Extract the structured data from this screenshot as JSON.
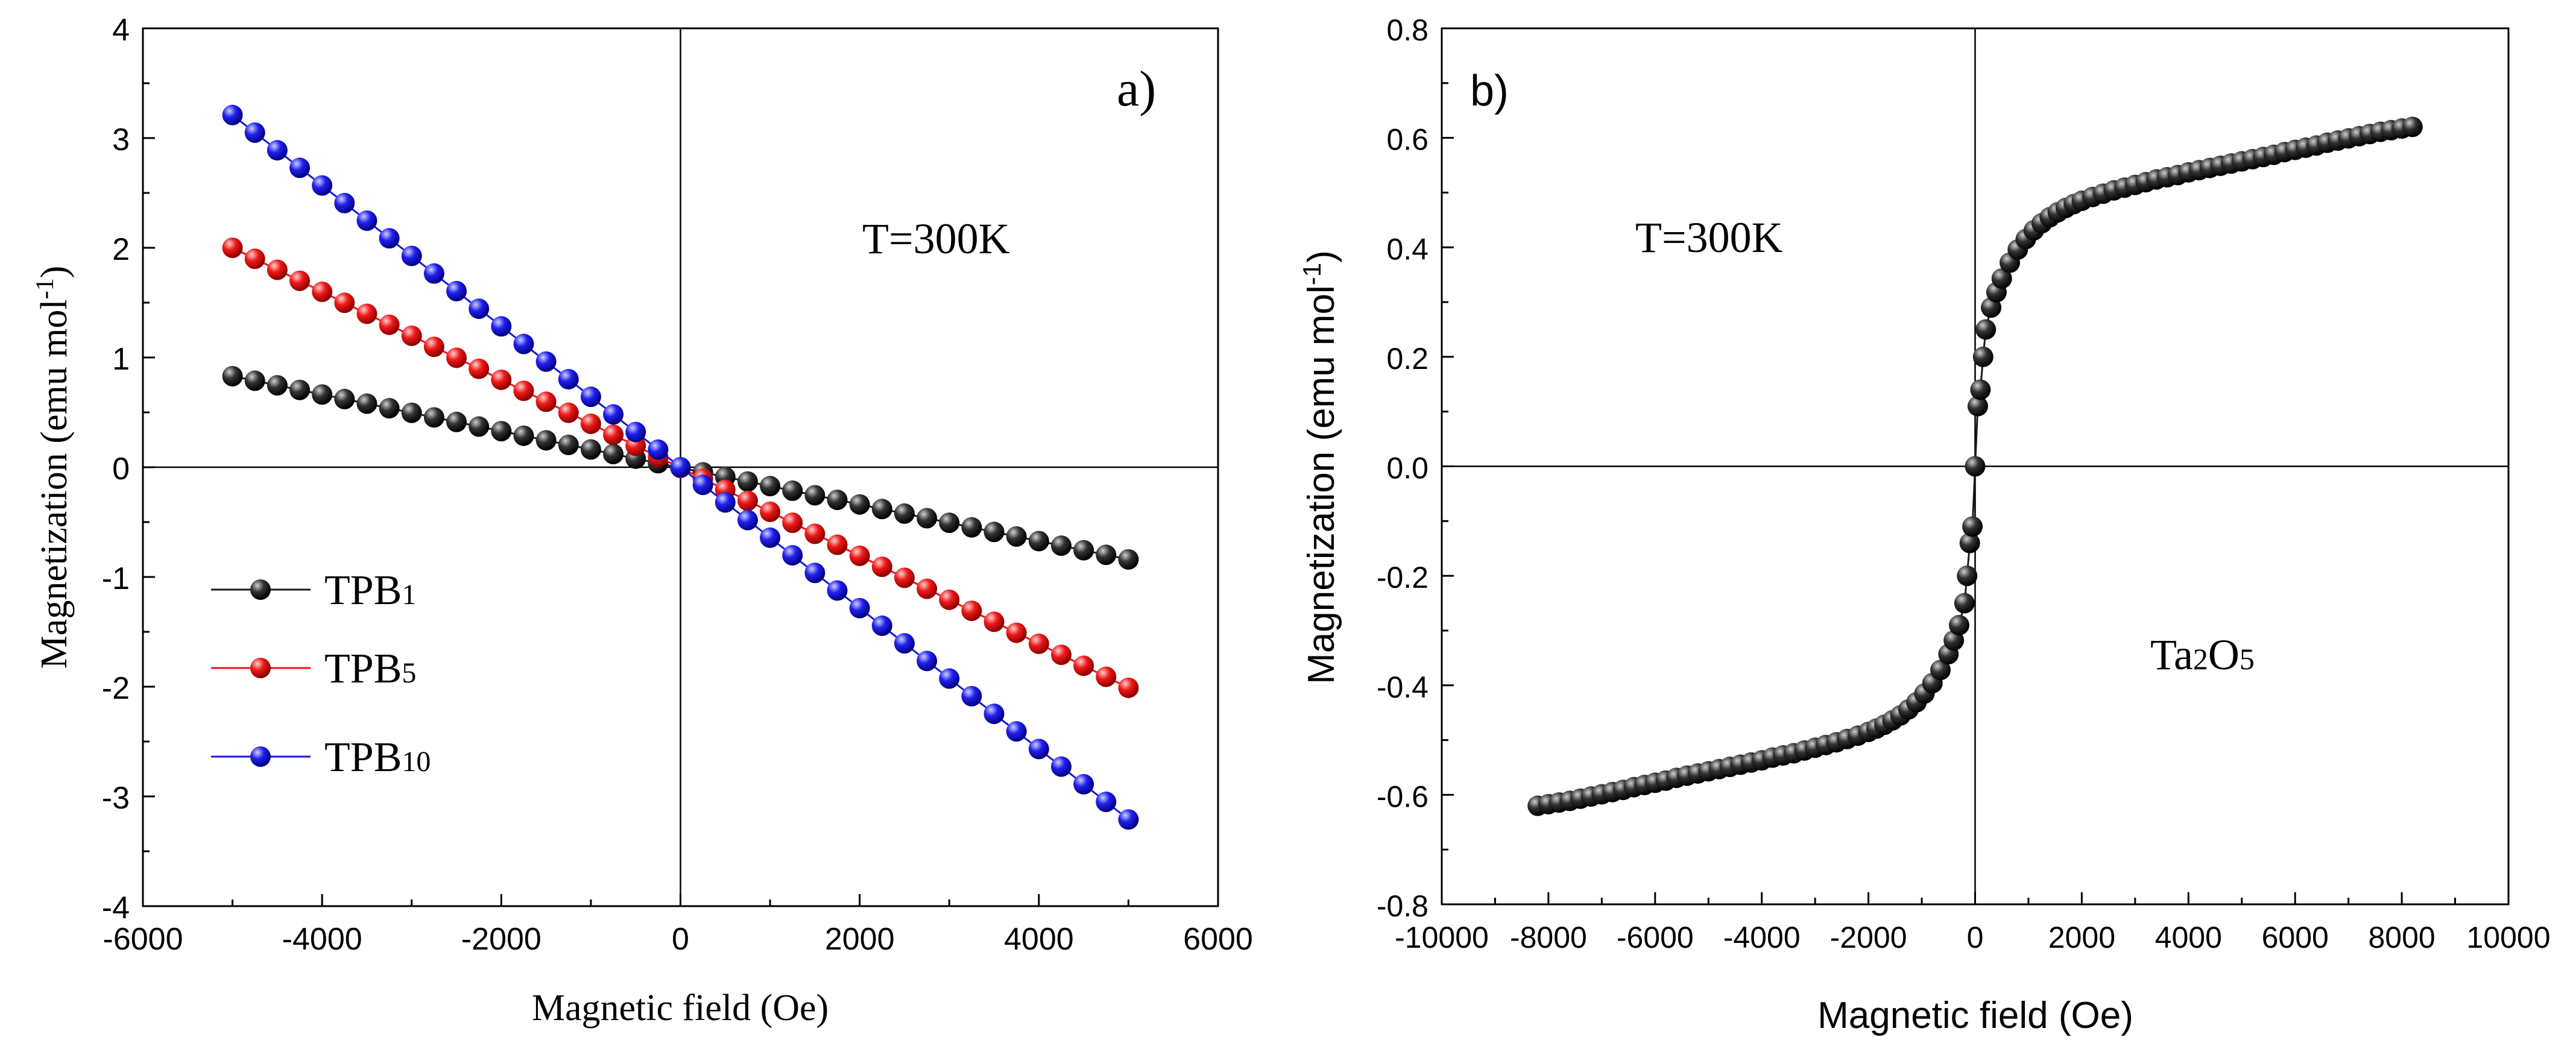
{
  "chart_data": [
    {
      "type": "scatter",
      "panel_label": "a)",
      "annotation": "T=300K",
      "xlabel": "Magnetic field (Oe)",
      "ylabel_main": "Magnetization  (emu mol",
      "ylabel_sup": "-1",
      "ylabel_end": ")",
      "xlim": [
        -6000,
        6000
      ],
      "ylim": [
        -4,
        4
      ],
      "xticks": [
        -6000,
        -4000,
        -2000,
        0,
        2000,
        4000,
        6000
      ],
      "yticks": [
        -4,
        -3,
        -2,
        -1,
        0,
        1,
        2,
        3,
        4
      ],
      "x_range": [
        -5000,
        5000
      ],
      "points_per_series": 41,
      "legend_position": "bottom-left",
      "series": [
        {
          "name": "TPB",
          "sub": "1",
          "color": "#1a1a1a",
          "y_at_min": 0.83,
          "y_at_max": -0.84
        },
        {
          "name": "TPB",
          "sub": "5",
          "color": "#ee1111",
          "y_at_min": 2.0,
          "y_at_max": -2.01
        },
        {
          "name": "TPB",
          "sub": "10",
          "color": "#1515e0",
          "y_at_min": 3.21,
          "y_at_max": -3.21
        }
      ]
    },
    {
      "type": "scatter",
      "panel_label": "b)",
      "annotation": "T=300K",
      "sample_main": "Ta",
      "sample_sub1": "2",
      "sample_mid": "O",
      "sample_sub2": "5",
      "xlabel": "Magnetic field (Oe)",
      "ylabel_main": "Magnetization (emu mol",
      "ylabel_sup": "-1",
      "ylabel_end": ")",
      "xlim": [
        -10000,
        10000
      ],
      "ylim": [
        -0.8,
        0.8
      ],
      "xticks": [
        -10000,
        -8000,
        -6000,
        -4000,
        -2000,
        0,
        2000,
        4000,
        6000,
        8000,
        10000
      ],
      "yticks": [
        -0.8,
        -0.6,
        -0.4,
        -0.2,
        0.0,
        0.2,
        0.4,
        0.6,
        0.8
      ],
      "ytick_labels": [
        "-0.8",
        "-0.6",
        "-0.4",
        "-0.2",
        "0.0",
        "0.2",
        "0.4",
        "0.6",
        "0.8"
      ],
      "series": [
        {
          "name": "Ta2O5",
          "color": "#1a1a1a",
          "x": [
            -8200,
            -8000,
            -7800,
            -7600,
            -7400,
            -7200,
            -7000,
            -6800,
            -6600,
            -6400,
            -6200,
            -6000,
            -5800,
            -5600,
            -5400,
            -5200,
            -5000,
            -4800,
            -4600,
            -4400,
            -4200,
            -4000,
            -3800,
            -3600,
            -3400,
            -3200,
            -3000,
            -2800,
            -2600,
            -2400,
            -2200,
            -2000,
            -1850,
            -1700,
            -1550,
            -1400,
            -1250,
            -1100,
            -950,
            -800,
            -650,
            -500,
            -400,
            -300,
            -200,
            -150,
            -100,
            -50,
            0,
            50,
            100,
            150,
            200,
            300,
            400,
            500,
            650,
            800,
            950,
            1100,
            1250,
            1400,
            1550,
            1700,
            1850,
            2000,
            2200,
            2400,
            2600,
            2800,
            3000,
            3200,
            3400,
            3600,
            3800,
            4000,
            4200,
            4400,
            4600,
            4800,
            5000,
            5200,
            5400,
            5600,
            5800,
            6000,
            6200,
            6400,
            6600,
            6800,
            7000,
            7200,
            7400,
            7600,
            7800,
            8000,
            8200
          ],
          "y": [
            -0.62,
            -0.617,
            -0.614,
            -0.611,
            -0.607,
            -0.603,
            -0.599,
            -0.595,
            -0.591,
            -0.586,
            -0.582,
            -0.578,
            -0.574,
            -0.569,
            -0.565,
            -0.561,
            -0.557,
            -0.553,
            -0.549,
            -0.545,
            -0.541,
            -0.537,
            -0.532,
            -0.528,
            -0.524,
            -0.519,
            -0.514,
            -0.509,
            -0.504,
            -0.498,
            -0.492,
            -0.485,
            -0.479,
            -0.472,
            -0.464,
            -0.455,
            -0.444,
            -0.431,
            -0.415,
            -0.396,
            -0.372,
            -0.343,
            -0.318,
            -0.29,
            -0.25,
            -0.2,
            -0.14,
            -0.11,
            0.0,
            0.11,
            0.14,
            0.2,
            0.25,
            0.29,
            0.318,
            0.343,
            0.372,
            0.396,
            0.415,
            0.431,
            0.444,
            0.455,
            0.464,
            0.472,
            0.479,
            0.485,
            0.492,
            0.498,
            0.504,
            0.509,
            0.514,
            0.519,
            0.524,
            0.528,
            0.532,
            0.537,
            0.541,
            0.545,
            0.549,
            0.553,
            0.557,
            0.561,
            0.565,
            0.569,
            0.574,
            0.578,
            0.582,
            0.586,
            0.591,
            0.595,
            0.599,
            0.603,
            0.607,
            0.611,
            0.614,
            0.617,
            0.62
          ]
        }
      ]
    }
  ]
}
